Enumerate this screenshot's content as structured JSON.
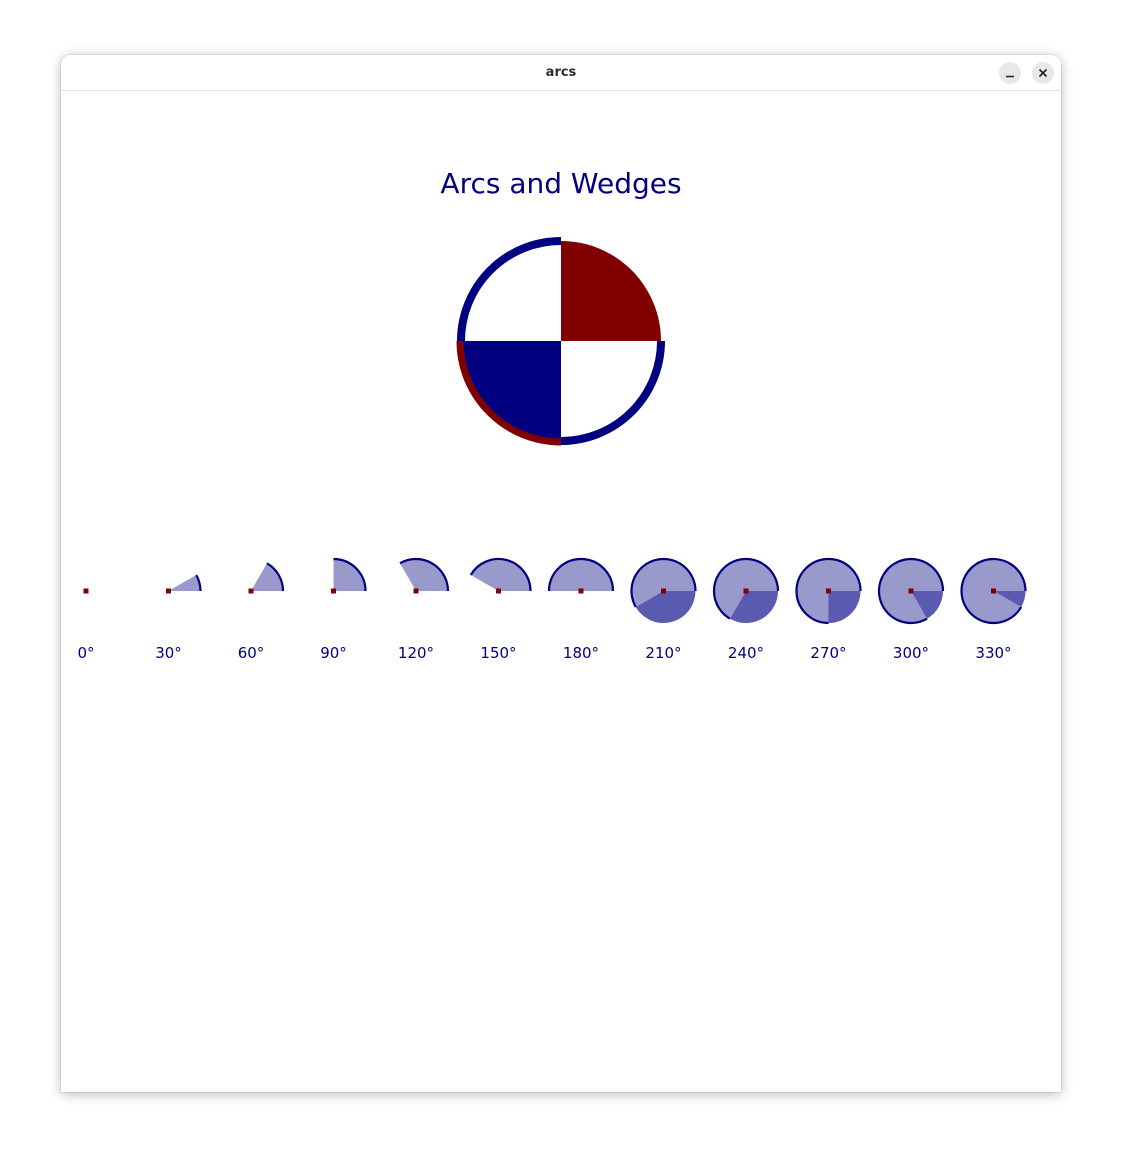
{
  "window": {
    "title": "arcs",
    "controls": {
      "minimize_icon": "minimize-icon",
      "close_icon": "close-icon"
    }
  },
  "drawing": {
    "title": "Arcs and Wedges",
    "colors": {
      "navy": "#000080",
      "maroon": "#800000",
      "wedge_fill": "#9999cc",
      "wedge_overlap_fill": "#5a5ab0",
      "title_color": "#000080"
    },
    "big_circle": {
      "quadrants": [
        {
          "name": "top-right",
          "fill": "#800000"
        },
        {
          "name": "top-left",
          "fill": "#ffffff"
        },
        {
          "name": "bottom-left",
          "fill": "#000080"
        },
        {
          "name": "bottom-right",
          "fill": "#ffffff"
        }
      ]
    },
    "wedges": [
      {
        "angle": 0,
        "label": "0°"
      },
      {
        "angle": 30,
        "label": "30°"
      },
      {
        "angle": 60,
        "label": "60°"
      },
      {
        "angle": 90,
        "label": "90°"
      },
      {
        "angle": 120,
        "label": "120°"
      },
      {
        "angle": 150,
        "label": "150°"
      },
      {
        "angle": 180,
        "label": "180°"
      },
      {
        "angle": 210,
        "label": "210°"
      },
      {
        "angle": 240,
        "label": "240°"
      },
      {
        "angle": 270,
        "label": "270°"
      },
      {
        "angle": 300,
        "label": "300°"
      },
      {
        "angle": 330,
        "label": "330°"
      }
    ]
  }
}
